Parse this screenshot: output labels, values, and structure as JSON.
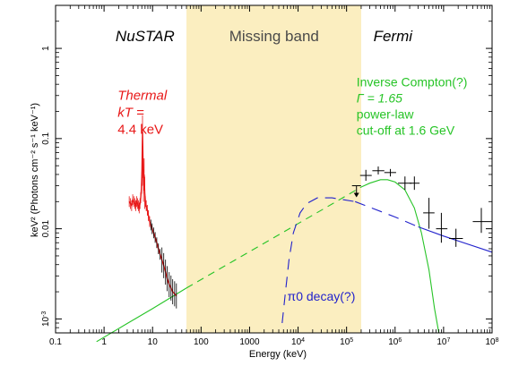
{
  "chart_data": {
    "type": "scatter",
    "title": "",
    "xlabel": "Energy (keV)",
    "ylabel": "keV² (Photons cm⁻² s⁻¹ keV⁻¹)",
    "xscale": "log",
    "yscale": "log",
    "xlim": [
      0.1,
      100000000
    ],
    "ylim": [
      0.0007,
      3
    ],
    "grid": false,
    "x_ticks": [
      {
        "value": 0.1,
        "label": "0.1"
      },
      {
        "value": 1,
        "label": "1"
      },
      {
        "value": 10,
        "label": "10"
      },
      {
        "value": 100,
        "label": "100"
      },
      {
        "value": 1000,
        "label": "1000"
      },
      {
        "value": 10000,
        "label": "10",
        "sup": "4"
      },
      {
        "value": 100000,
        "label": "10",
        "sup": "5"
      },
      {
        "value": 1000000,
        "label": "10",
        "sup": "6"
      },
      {
        "value": 10000000,
        "label": "10",
        "sup": "7"
      },
      {
        "value": 100000000,
        "label": "10",
        "sup": "8"
      }
    ],
    "y_ticks": [
      {
        "value": 0.001,
        "label": "10",
        "sup": "-3"
      },
      {
        "value": 0.01,
        "label": "0.01"
      },
      {
        "value": 0.1,
        "label": "0.1"
      },
      {
        "value": 1,
        "label": "1"
      }
    ],
    "bands": [
      {
        "label": "Missing band",
        "x0": 50,
        "x1": 200000,
        "color": "#fbeec0"
      }
    ],
    "region_labels": [
      {
        "text": "NuSTAR",
        "x": 7,
        "y": 1.2,
        "italic": true,
        "color": "#000000"
      },
      {
        "text": "Missing band",
        "x": 3200,
        "y": 1.2,
        "italic": false,
        "color": "#4a4a4a"
      },
      {
        "text": "Fermi",
        "x": 900000,
        "y": 1.2,
        "italic": true,
        "color": "#000000"
      }
    ],
    "annotations": {
      "thermal": {
        "color": "#e81818",
        "lines": [
          "Thermal",
          "kT =",
          "4.4 keV"
        ],
        "x": 1.9,
        "y": 0.27
      },
      "inverse_compton": {
        "color": "#27c427",
        "lines": [
          "Inverse Compton(?)",
          "Γ = 1.65",
          "power-law",
          "cut-off at 1.6 GeV"
        ],
        "x": 160000,
        "y": 0.38
      },
      "pion": {
        "color": "#2222cc",
        "text": "π0 decay(?)",
        "x": 6000,
        "y": 0.0016
      }
    },
    "series": [
      {
        "name": "NuSTAR",
        "color": "#e81818",
        "points": [
          [
            3.3,
            0.02
          ],
          [
            3.5,
            0.019
          ],
          [
            3.7,
            0.018
          ],
          [
            3.9,
            0.021
          ],
          [
            4.1,
            0.02
          ],
          [
            4.3,
            0.019
          ],
          [
            4.5,
            0.018
          ],
          [
            4.7,
            0.02
          ],
          [
            4.9,
            0.019
          ],
          [
            5.1,
            0.018
          ],
          [
            5.3,
            0.017
          ],
          [
            5.5,
            0.019
          ],
          [
            5.7,
            0.022
          ],
          [
            5.9,
            0.028
          ],
          [
            6.05,
            0.045
          ],
          [
            6.2,
            0.12
          ],
          [
            6.35,
            0.055
          ],
          [
            6.5,
            0.03
          ],
          [
            6.7,
            0.04
          ],
          [
            6.9,
            0.025
          ],
          [
            7.1,
            0.02
          ],
          [
            7.4,
            0.018
          ],
          [
            7.8,
            0.016
          ],
          [
            8.2,
            0.014
          ],
          [
            8.7,
            0.012
          ],
          [
            9.2,
            0.011
          ],
          [
            9.8,
            0.01
          ],
          [
            10.5,
            0.009
          ],
          [
            11.3,
            0.008
          ],
          [
            12.2,
            0.007
          ],
          [
            13.2,
            0.006
          ],
          [
            14.3,
            0.0052
          ],
          [
            15.6,
            0.0045
          ],
          [
            17.0,
            0.0039
          ],
          [
            18.5,
            0.0033
          ],
          [
            20.0,
            0.0028
          ],
          [
            22.0,
            0.0024
          ],
          [
            24.0,
            0.0022
          ],
          [
            26.0,
            0.002
          ],
          [
            28.5,
            0.0019
          ],
          [
            31.0,
            0.0018
          ]
        ]
      },
      {
        "name": "Fermi",
        "color": "#000000",
        "points": [
          {
            "x": 160000,
            "y": 0.03,
            "upper_limit": true
          },
          {
            "x": 250000,
            "y": 0.039,
            "xerr": [
              190000,
              330000
            ],
            "yerr": [
              0.034,
              0.045
            ]
          },
          {
            "x": 450000,
            "y": 0.044,
            "xerr": [
              340000,
              600000
            ],
            "yerr": [
              0.04,
              0.049
            ]
          },
          {
            "x": 800000,
            "y": 0.042,
            "xerr": [
              600000,
              1050000
            ],
            "yerr": [
              0.038,
              0.046
            ]
          },
          {
            "x": 1600000,
            "y": 0.032,
            "xerr": [
              1150000,
              2200000
            ],
            "yerr": [
              0.027,
              0.038
            ]
          },
          {
            "x": 2500000,
            "y": 0.032,
            "xerr": [
              2000000,
              3200000
            ],
            "yerr": [
              0.027,
              0.038
            ]
          },
          {
            "x": 5000000,
            "y": 0.015,
            "xerr": [
              3800000,
              6500000
            ],
            "yerr": [
              0.01,
              0.022
            ]
          },
          {
            "x": 9000000,
            "y": 0.01,
            "xerr": [
              7000000,
              12000000
            ],
            "yerr": [
              0.007,
              0.015
            ]
          },
          {
            "x": 18000000,
            "y": 0.0078,
            "xerr": [
              13000000,
              25000000
            ],
            "yerr": [
              0.0063,
              0.01
            ]
          },
          {
            "x": 60000000,
            "y": 0.012,
            "xerr": [
              40000000,
              100000000
            ],
            "yerr": [
              0.009,
              0.017
            ]
          }
        ]
      }
    ],
    "lines": [
      {
        "name": "Inverse Compton power-law",
        "color": "#27c427",
        "dash": "none",
        "points": [
          [
            0.7,
            0.00056
          ],
          [
            3,
            0.00089
          ],
          [
            10,
            0.0013
          ],
          [
            50,
            0.0022
          ]
        ]
      },
      {
        "name": "Inverse Compton power-law (missing band)",
        "color": "#27c427",
        "dash": "8,6",
        "points": [
          [
            50,
            0.0022
          ],
          [
            500,
            0.0045
          ],
          [
            5000,
            0.0092
          ],
          [
            50000,
            0.0188
          ],
          [
            200000,
            0.029
          ]
        ]
      },
      {
        "name": "Inverse Compton cut-off",
        "color": "#27c427",
        "dash": "none",
        "points": [
          [
            200000,
            0.029
          ],
          [
            300000,
            0.032
          ],
          [
            500000,
            0.035
          ],
          [
            700000,
            0.035
          ],
          [
            1000000,
            0.033
          ],
          [
            1600000,
            0.027
          ],
          [
            2500000,
            0.017
          ],
          [
            3500000,
            0.009
          ],
          [
            5000000,
            0.0035
          ],
          [
            6500000,
            0.0013
          ],
          [
            8000000,
            0.0007
          ]
        ]
      },
      {
        "name": "Pion decay",
        "color": "#2222cc",
        "dash": "12,8",
        "points": [
          [
            4700,
            0.0009
          ],
          [
            5500,
            0.002
          ],
          [
            6500,
            0.0045
          ],
          [
            8000,
            0.009
          ],
          [
            11000,
            0.015
          ],
          [
            15000,
            0.019
          ],
          [
            25000,
            0.022
          ],
          [
            50000,
            0.022
          ],
          [
            150000,
            0.02
          ]
        ]
      },
      {
        "name": "Pion decay (Fermi)",
        "color": "#2222cc",
        "dash": "12,8",
        "points": [
          [
            150000,
            0.02
          ],
          [
            1000000,
            0.0135
          ],
          [
            3000000,
            0.0105
          ]
        ]
      },
      {
        "name": "Pion decay tail",
        "color": "#2222cc",
        "dash": "none",
        "points": [
          [
            3000000,
            0.0105
          ],
          [
            10000000,
            0.0083
          ],
          [
            100000000,
            0.0055
          ]
        ]
      }
    ]
  }
}
